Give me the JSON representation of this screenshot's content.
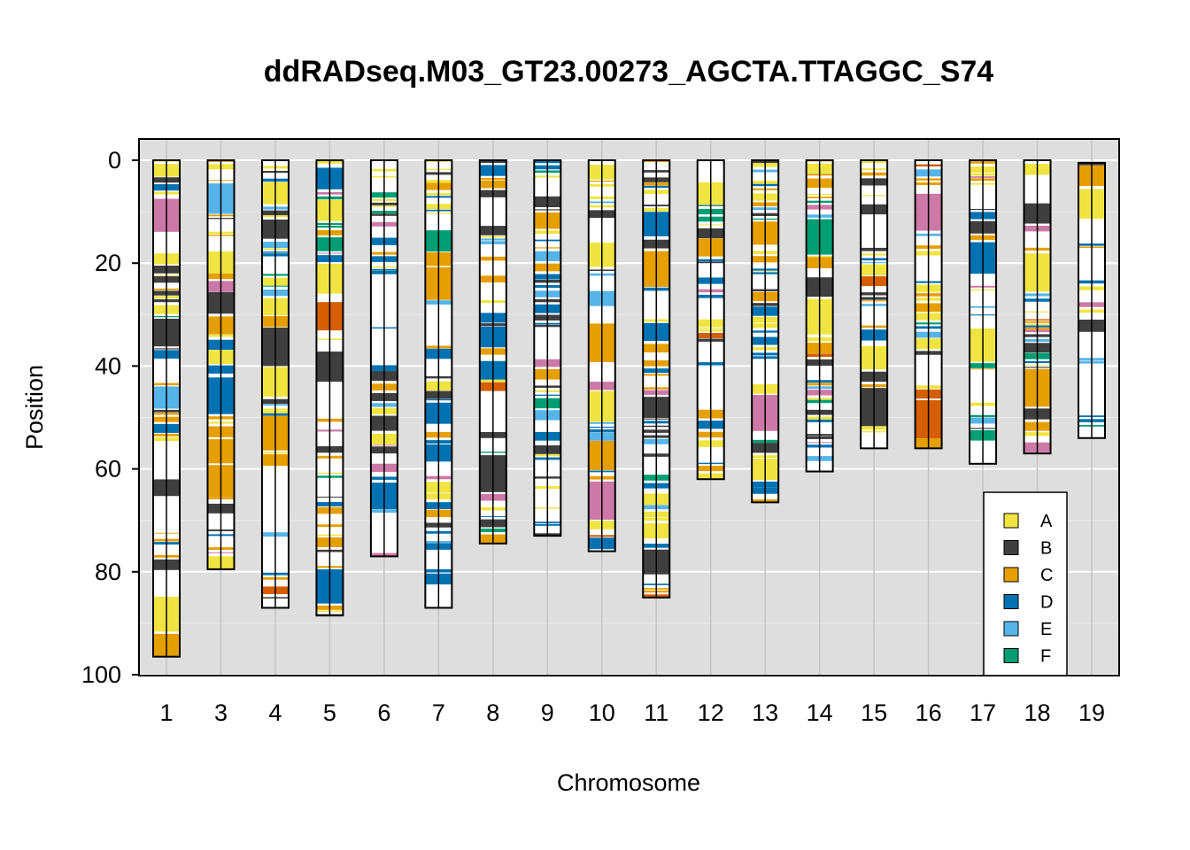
{
  "chart_data": {
    "type": "heatmap",
    "title": "ddRADseq.M03_GT23.00273_AGCTA.TTAGGC_S74",
    "xlabel": "Chromosome",
    "ylabel": "Position",
    "ylim": [
      0,
      100
    ],
    "y_reversed": true,
    "y_ticks": [
      "0",
      "20",
      "40",
      "60",
      "80",
      "100"
    ],
    "grid": true,
    "legend_position": "bottom-right",
    "colors": {
      "A": "#f0e442",
      "B": "#3f3f3f",
      "C": "#e69f00",
      "D": "#0072b2",
      "E": "#56b4e9",
      "F": "#009e73",
      "G": "#cc79a7",
      "H": "#d55e00"
    },
    "legend": [
      "A",
      "B",
      "C",
      "D",
      "E",
      "F"
    ],
    "chromosomes": [
      {
        "name": "1",
        "start": 0,
        "length": 96.5,
        "seed": 11
      },
      {
        "name": "3",
        "start": 0,
        "length": 79.5,
        "seed": 23
      },
      {
        "name": "4",
        "start": 0,
        "length": 87.0,
        "seed": 37
      },
      {
        "name": "5",
        "start": 0,
        "length": 88.5,
        "seed": 41
      },
      {
        "name": "6",
        "start": 0,
        "length": 77.0,
        "seed": 53
      },
      {
        "name": "7",
        "start": 0,
        "length": 87.0,
        "seed": 67
      },
      {
        "name": "8",
        "start": 0,
        "length": 74.5,
        "seed": 71
      },
      {
        "name": "9",
        "start": 0,
        "length": 73.0,
        "seed": 83
      },
      {
        "name": "10",
        "start": 0,
        "length": 76.0,
        "seed": 97
      },
      {
        "name": "11",
        "start": 0,
        "length": 85.0,
        "seed": 101
      },
      {
        "name": "12",
        "start": 0,
        "length": 62.0,
        "seed": 113
      },
      {
        "name": "13",
        "start": 0,
        "length": 66.5,
        "seed": 127
      },
      {
        "name": "14",
        "start": 0,
        "length": 60.5,
        "seed": 131
      },
      {
        "name": "15",
        "start": 0,
        "length": 56.0,
        "seed": 149
      },
      {
        "name": "16",
        "start": 0,
        "length": 56.0,
        "seed": 151
      },
      {
        "name": "17",
        "start": 0,
        "length": 59.0,
        "seed": 163
      },
      {
        "name": "18",
        "start": 0,
        "length": 57.0,
        "seed": 173
      },
      {
        "name": "19",
        "start": 0.5,
        "length": 53.5,
        "seed": 181
      }
    ]
  }
}
